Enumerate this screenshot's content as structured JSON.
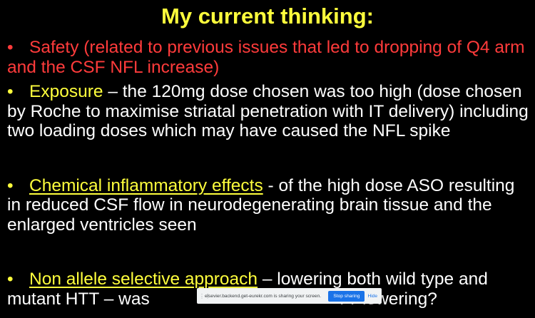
{
  "slide": {
    "title": "My current thinking:",
    "bullet_char": "•",
    "bullets": [
      {
        "lead": "Safety (related to previous issues that led to dropping of Q4 arm and the CSF NFL increase)",
        "rest": ""
      },
      {
        "lead": "Exposure",
        "rest": " – the 120mg dose chosen was too high (dose chosen by Roche to maximise striatal penetration with IT delivery) including two loading doses which may have caused the NFL spike"
      },
      {
        "lead": "Chemical inflammatory effects",
        "rest": " - of the high dose ASO resulting in reduced CSF flow in neurodegenerating brain tissue and the enlarged ventricles seen"
      },
      {
        "lead": "Non allele selective approach",
        "rest_before": " – lowering both wild type and mutant HTT – was",
        "rest_after": "TT lowering?"
      }
    ]
  },
  "share_bar": {
    "handle": "⋮⋮",
    "message": "elsevier.backend.get-eurekr.com is sharing your screen.",
    "stop_label": "Stop sharing",
    "hide_label": "Hide"
  },
  "colors": {
    "background": "#000000",
    "title": "#ffff3c",
    "safety": "#ff3b3b",
    "highlight": "#ffff3c",
    "body": "#ffffff",
    "stop_button": "#1a73e8"
  }
}
